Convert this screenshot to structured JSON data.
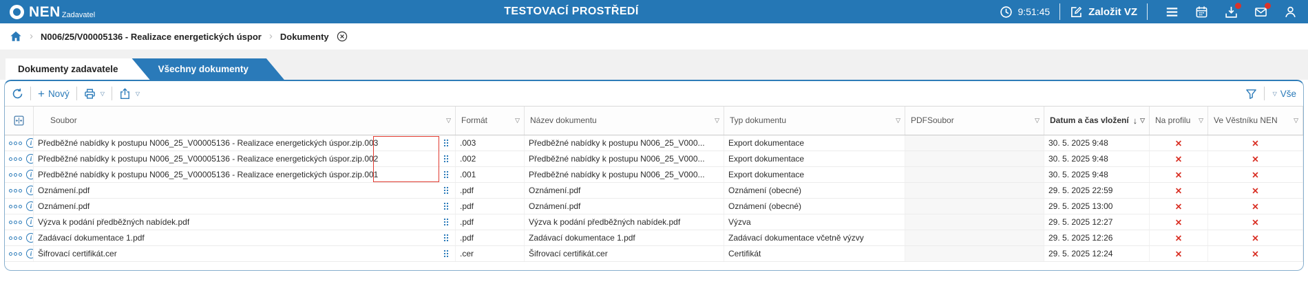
{
  "header": {
    "brand": "NEN",
    "brand_sub": "Zadavatel",
    "title": "TESTOVACÍ PROSTŘEDÍ",
    "time": "9:51:45",
    "create_vz_label": "Založit VZ"
  },
  "breadcrumb": {
    "procedure": "N006/25/V00005136 - Realizace energetických úspor",
    "current": "Dokumenty"
  },
  "tabs": [
    {
      "label": "Dokumenty zadavatele",
      "active": true
    },
    {
      "label": "Všechny dokumenty",
      "active": false
    }
  ],
  "toolbar": {
    "new_label": "Nový",
    "all_label": "Vše"
  },
  "table": {
    "columns": [
      {
        "key": "soubor",
        "label": "Soubor",
        "filter": true
      },
      {
        "key": "format",
        "label": "Formát",
        "filter": true
      },
      {
        "key": "nazev",
        "label": "Název dokumentu",
        "filter": true
      },
      {
        "key": "typ",
        "label": "Typ dokumentu",
        "filter": true
      },
      {
        "key": "pdf",
        "label": "PDFSoubor",
        "filter": true
      },
      {
        "key": "datum",
        "label": "Datum a čas vložení",
        "filter": true,
        "sorted": "desc"
      },
      {
        "key": "profil",
        "label": "Na profilu",
        "filter": true
      },
      {
        "key": "vestnik",
        "label": "Ve Věstníku NEN",
        "filter": true
      }
    ],
    "rows": [
      {
        "soubor": "Předběžné nabídky k postupu N006_25_V00005136 - Realizace energetických úspor.zip.003",
        "format": ".003",
        "nazev": "Předběžné nabídky k postupu N006_25_V000...",
        "typ": "Export dokumentace",
        "pdf": "",
        "datum": "30. 5. 2025 9:48",
        "profil": "✕",
        "vestnik": "✕"
      },
      {
        "soubor": "Předběžné nabídky k postupu N006_25_V00005136 - Realizace energetických úspor.zip.002",
        "format": ".002",
        "nazev": "Předběžné nabídky k postupu N006_25_V000...",
        "typ": "Export dokumentace",
        "pdf": "",
        "datum": "30. 5. 2025 9:48",
        "profil": "✕",
        "vestnik": "✕"
      },
      {
        "soubor": "Předběžné nabídky k postupu N006_25_V00005136 - Realizace energetických úspor.zip.001",
        "format": ".001",
        "nazev": "Předběžné nabídky k postupu N006_25_V000...",
        "typ": "Export dokumentace",
        "pdf": "",
        "datum": "30. 5. 2025 9:48",
        "profil": "✕",
        "vestnik": "✕"
      },
      {
        "soubor": "Oznámení.pdf",
        "format": ".pdf",
        "nazev": "Oznámení.pdf",
        "typ": "Oznámení (obecné)",
        "pdf": "",
        "datum": "29. 5. 2025 22:59",
        "profil": "✕",
        "vestnik": "✕"
      },
      {
        "soubor": "Oznámení.pdf",
        "format": ".pdf",
        "nazev": "Oznámení.pdf",
        "typ": "Oznámení (obecné)",
        "pdf": "",
        "datum": "29. 5. 2025 13:00",
        "profil": "✕",
        "vestnik": "✕"
      },
      {
        "soubor": "Výzva k podání předběžných nabídek.pdf",
        "format": ".pdf",
        "nazev": "Výzva k podání předběžných nabídek.pdf",
        "typ": "Výzva",
        "pdf": "",
        "datum": "29. 5. 2025 12:27",
        "profil": "✕",
        "vestnik": "✕"
      },
      {
        "soubor": "Zadávací dokumentace 1.pdf",
        "format": ".pdf",
        "nazev": "Zadávací dokumentace 1.pdf",
        "typ": "Zadávací dokumentace včetně výzvy",
        "pdf": "",
        "datum": "29. 5. 2025 12:26",
        "profil": "✕",
        "vestnik": "✕"
      },
      {
        "soubor": "Šifrovací certifikát.cer",
        "format": ".cer",
        "nazev": "Šifrovací certifikát.cer",
        "typ": "Certifikát",
        "pdf": "",
        "datum": "29. 5. 2025 12:24",
        "profil": "✕",
        "vestnik": "✕"
      }
    ]
  },
  "colors": {
    "topbar": "#2577b5",
    "accent": "#2a7ab9",
    "badge": "#d9342b",
    "cross": "#d93025",
    "annotation": "#e0392f"
  }
}
